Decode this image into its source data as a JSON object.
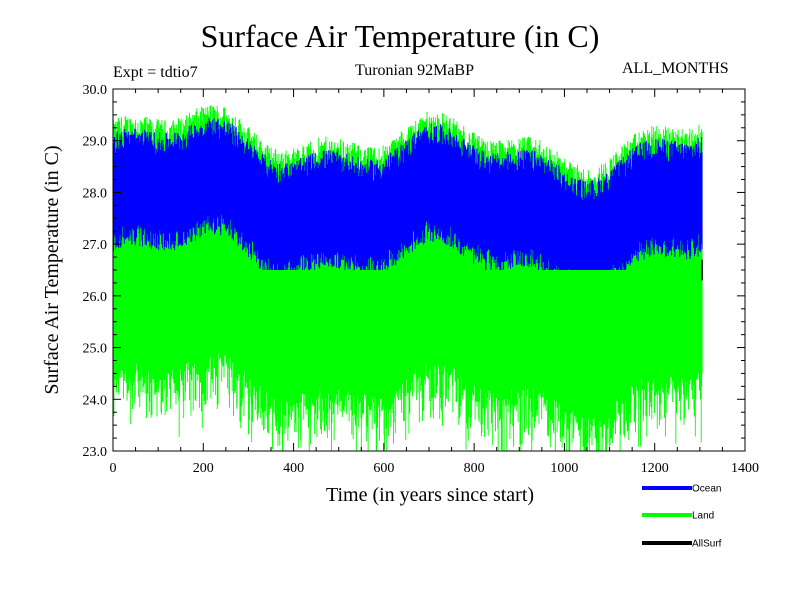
{
  "chart_data": {
    "type": "line",
    "title": "Surface Air Temperature (in C)",
    "subtitle_left": "Expt = tdtio7",
    "subtitle_center": "Turonian  92MaBP",
    "subtitle_right": "ALL_MONTHS",
    "xlabel": "Time (in years since start)",
    "ylabel": "Surface Air Temperature (in C)",
    "xlim": [
      0,
      1400
    ],
    "ylim": [
      23.0,
      30.0
    ],
    "x_ticks": [
      0,
      200,
      400,
      600,
      800,
      1000,
      1200,
      1400
    ],
    "y_ticks": [
      "23.0",
      "24.0",
      "25.0",
      "26.0",
      "27.0",
      "28.0",
      "29.0",
      "30.0"
    ],
    "x_range_of_data": [
      0,
      1305
    ],
    "series": [
      {
        "name": "Ocean",
        "color": "#0000ff",
        "mean": 27.75,
        "range": [
          26.5,
          29.45
        ]
      },
      {
        "name": "Land",
        "color": "#00ff00",
        "mean": 25.6,
        "range": [
          23.0,
          29.7
        ]
      },
      {
        "name": "AllSurf",
        "color": "#000000",
        "mean": 26.5,
        "range": [
          26.3,
          26.7
        ]
      }
    ],
    "legend_position": "bottom-right"
  }
}
